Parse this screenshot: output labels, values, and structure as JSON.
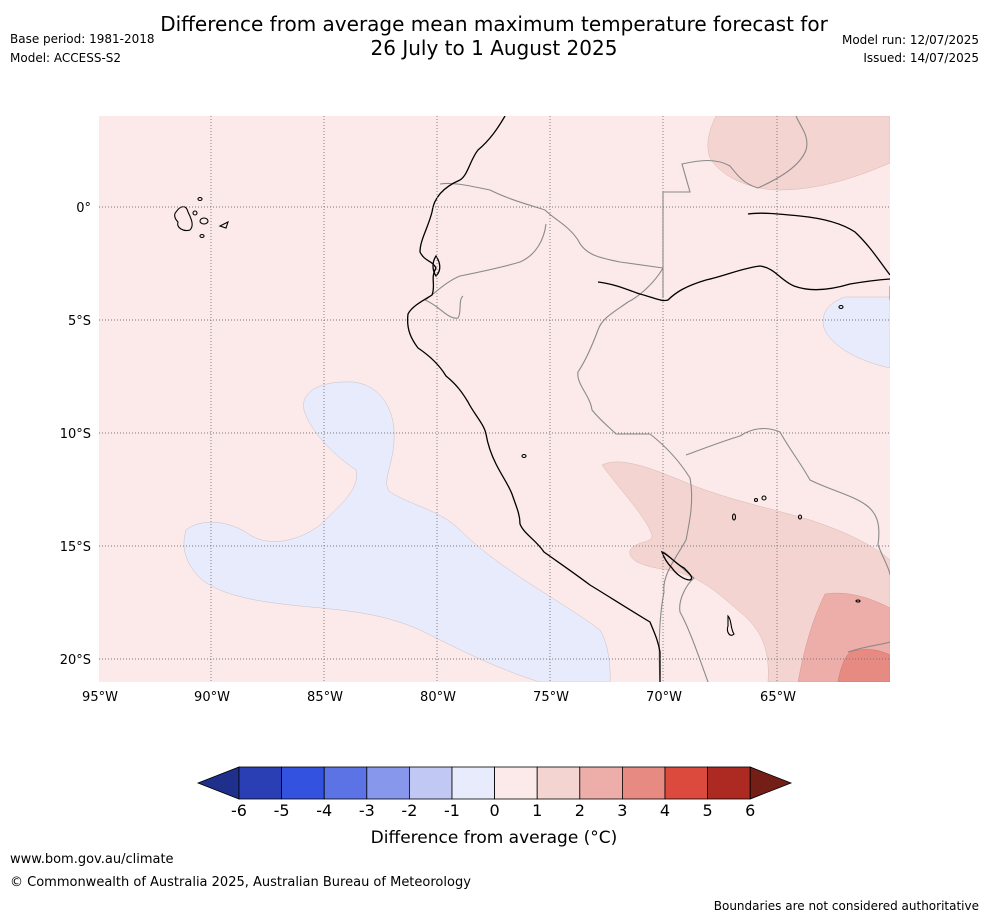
{
  "title_line1": "Difference from average mean maximum temperature forecast for",
  "title_line2": "26 July to 1 August 2025",
  "base_period": "Base period: 1981-2018",
  "model": "Model: ACCESS-S2",
  "model_run": "Model run: 12/07/2025",
  "issued": "Issued: 14/07/2025",
  "lat_labels": [
    "0°",
    "5°S",
    "10°S",
    "15°S",
    "20°S"
  ],
  "lon_labels": [
    "95°W",
    "90°W",
    "85°W",
    "80°W",
    "75°W",
    "70°W",
    "65°W"
  ],
  "colorbar": {
    "label": "Difference from average (°C)",
    "ticks": [
      "-6",
      "-5",
      "-4",
      "-3",
      "-2",
      "-1",
      "0",
      "1",
      "2",
      "3",
      "4",
      "5",
      "6"
    ],
    "colors": [
      "#1f2f8c",
      "#2a3fb4",
      "#3352e0",
      "#5c73e6",
      "#8697ec",
      "#c1c8f4",
      "#e8ebfb",
      "#fbeae9",
      "#f4d4d1",
      "#edaeaa",
      "#e68a82",
      "#dc4a3e",
      "#ad2a22",
      "#741e18"
    ]
  },
  "footer": {
    "website": "www.bom.gov.au/climate",
    "copyright": "© Commonwealth of Australia 2025, Australian Bureau of Meteorology",
    "boundaries": "Boundaries are not considered authoritative"
  }
}
